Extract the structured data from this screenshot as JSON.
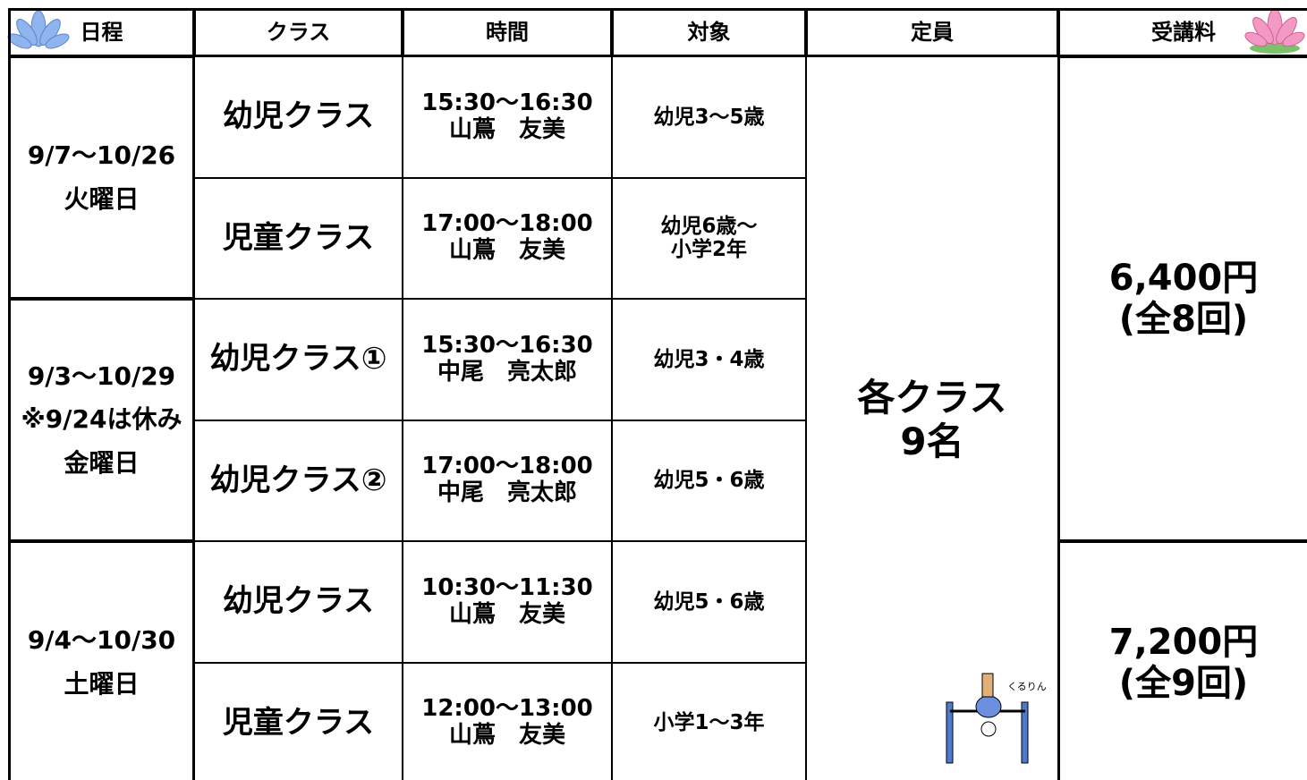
{
  "header": {
    "columns": [
      "日程",
      "クラス",
      "時間",
      "対象",
      "定員",
      "受講料"
    ]
  },
  "groups": [
    {
      "schedule": [
        "9/7～10/26",
        "火曜日"
      ],
      "classes": [
        {
          "name": "幼児クラス",
          "time": "15:30～16:30",
          "teacher": "山蔦　友美",
          "target": [
            "幼児3～5歳"
          ]
        },
        {
          "name": "児童クラス",
          "time": "17:00～18:00",
          "teacher": "山蔦　友美",
          "target": [
            "幼児6歳～",
            "小学2年"
          ]
        }
      ]
    },
    {
      "schedule": [
        "9/3～10/29",
        "※9/24は休み",
        "金曜日"
      ],
      "classes": [
        {
          "name": "幼児クラス①",
          "time": "15:30～16:30",
          "teacher": "中尾　亮太郎",
          "target": [
            "幼児3・4歳"
          ]
        },
        {
          "name": "幼児クラス②",
          "time": "17:00～18:00",
          "teacher": "中尾　亮太郎",
          "target": [
            "幼児5・6歳"
          ]
        }
      ]
    },
    {
      "schedule": [
        "9/4～10/30",
        "土曜日"
      ],
      "classes": [
        {
          "name": "幼児クラス",
          "time": "10:30～11:30",
          "teacher": "山蔦　友美",
          "target": [
            "幼児5・6歳"
          ]
        },
        {
          "name": "児童クラス",
          "time": "12:00～13:00",
          "teacher": "山蔦　友美",
          "target": [
            "小学1～3年"
          ]
        }
      ]
    }
  ],
  "capacity": [
    "各クラス",
    "9名"
  ],
  "fees": [
    {
      "amount": "6,400円",
      "sessions": "(全8回)"
    },
    {
      "amount": "7,200円",
      "sessions": "(全9回)"
    }
  ],
  "illustration_text": "くるりん!"
}
